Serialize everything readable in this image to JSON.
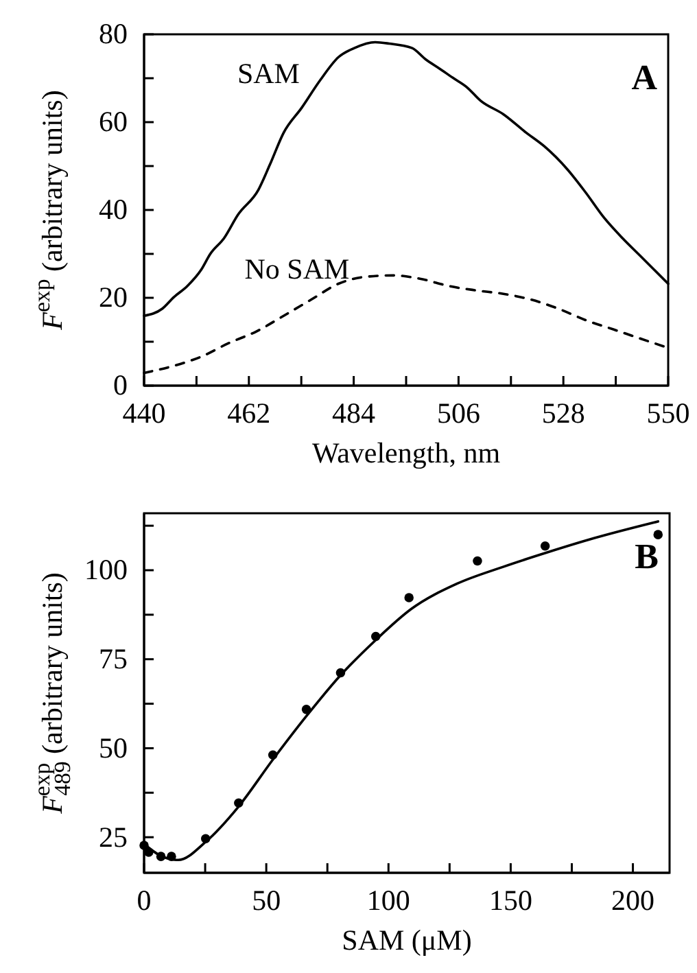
{
  "chart_data": [
    {
      "type": "line",
      "xlabel": "Wavelength, nm",
      "ylabel": "F$^{exp}$ (arbitrary units)",
      "annotations": [
        "A"
      ],
      "legend": false,
      "grid": false,
      "xlim": [
        440,
        550
      ],
      "ylim": [
        0,
        80
      ],
      "xticks": [
        440,
        {
          "value": 451,
          "label": null
        },
        462,
        {
          "value": 473,
          "label": null
        },
        484,
        {
          "value": 495,
          "label": null
        },
        506,
        {
          "value": 517,
          "label": null
        },
        528,
        {
          "value": 539,
          "label": null
        },
        550
      ],
      "yticks": [
        0,
        {
          "value": 10,
          "label": null
        },
        20,
        {
          "value": 30,
          "label": null
        },
        40,
        {
          "value": 50,
          "label": null
        },
        60,
        {
          "value": 70,
          "label": null
        },
        80
      ],
      "series": [
        {
          "name": "SAM",
          "color": "#000000",
          "line_style": "solid",
          "x": [
            440,
            443.8,
            446.2,
            449.1,
            452,
            453.9,
            456.8,
            459.7,
            464,
            466.4,
            469.3,
            473.1,
            477,
            480.8,
            484.2,
            488.5,
            491.4,
            496.2,
            499.1,
            502,
            504.8,
            507.7,
            510.6,
            515.4,
            520.2,
            524,
            528.8,
            532.6,
            536.5,
            540.4,
            544.2,
            550
          ],
          "values": [
            15.9,
            17.5,
            20.1,
            22.7,
            26.4,
            30,
            33.6,
            38.9,
            44.6,
            50.3,
            57.6,
            63.3,
            69.6,
            74.8,
            76.9,
            78.2,
            77.9,
            76.9,
            74.3,
            72.2,
            70.1,
            68,
            64.9,
            61.8,
            57.6,
            54.5,
            49.3,
            44.1,
            38.3,
            33.6,
            29.5,
            23.2
          ]
        },
        {
          "name": "No SAM",
          "color": "#000000",
          "line_style": "dashed",
          "x": [
            440,
            446.2,
            452,
            457.8,
            463.5,
            469.3,
            475.1,
            480.8,
            486.6,
            492.4,
            498.1,
            503.9,
            509.6,
            515.4,
            521.2,
            527,
            532.7,
            538.5,
            544.2,
            550
          ],
          "values": [
            2.9,
            4.5,
            6.6,
            9.7,
            12.3,
            15.9,
            19.6,
            23.2,
            24.8,
            25.1,
            24.3,
            22.7,
            21.7,
            20.9,
            19.6,
            17.5,
            14.9,
            12.8,
            10.7,
            8.6
          ]
        }
      ]
    },
    {
      "type": "scatter",
      "xlabel": "SAM (μM)",
      "ylabel": "F$^{exp}$$_{489}$ (arbitrary units)",
      "annotations": [
        "B"
      ],
      "legend": false,
      "grid": false,
      "xlim": [
        0,
        215
      ],
      "ylim": [
        15,
        116
      ],
      "xticks": [
        0,
        {
          "value": 25,
          "label": null
        },
        50,
        {
          "value": 75,
          "label": null
        },
        100,
        {
          "value": 125,
          "label": null
        },
        150,
        {
          "value": 175,
          "label": null
        },
        200
      ],
      "yticks": [
        25,
        {
          "value": 37.5,
          "label": null
        },
        50,
        {
          "value": 62.5,
          "label": null
        },
        75,
        {
          "value": 87.5,
          "label": null
        },
        100,
        {
          "value": 112.5,
          "label": null
        }
      ],
      "series": [
        {
          "color": "#000000",
          "marker": "circle",
          "x": [
            0,
            1.9,
            6.9,
            11.2,
            25.2,
            38.7,
            52.7,
            66.4,
            80.4,
            94.8,
            108.4,
            136.4,
            164.1,
            210.3
          ],
          "values": [
            22.7,
            20.8,
            19.6,
            19.6,
            24.6,
            34.6,
            48.1,
            60.9,
            71.2,
            81.4,
            92.3,
            102.6,
            106.8,
            110
          ]
        },
        {
          "type": "line",
          "color": "#000000",
          "line_style": "solid",
          "x": [
            0,
            6.5,
            14,
            25.2,
            38.3,
            52.7,
            66.4,
            80.4,
            94.8,
            109.3,
            128,
            146.7,
            165.4,
            184.1,
            210.3
          ],
          "values": [
            23.1,
            19.9,
            18.6,
            23.7,
            33.3,
            46.8,
            59,
            70.5,
            80.4,
            89.1,
            96.2,
            100.9,
            105.1,
            109,
            113.7
          ]
        }
      ]
    }
  ]
}
